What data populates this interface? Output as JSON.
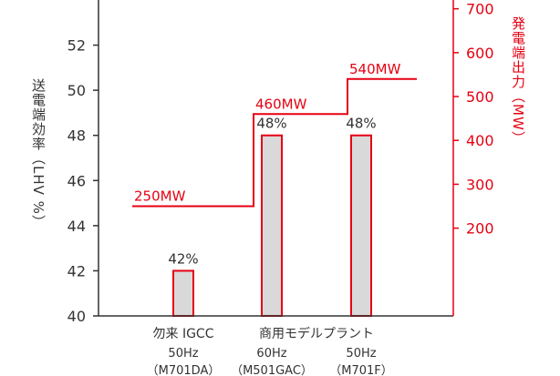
{
  "chart_data": {
    "type": "bar",
    "ylabel": "送電端効率（LHV %）",
    "y2label": "発電端出力（MW）",
    "ylim": [
      40,
      54
    ],
    "yticks": [
      40,
      42,
      44,
      46,
      48,
      50,
      52
    ],
    "y2lim": [
      0,
      720
    ],
    "y2ticks": [
      200,
      300,
      400,
      500,
      600,
      700
    ],
    "categories": [
      {
        "line1": "勿来 IGCC",
        "line2": "50Hz",
        "line3": "（M701DA）"
      },
      {
        "line1": "",
        "line2": "60Hz",
        "line3": "（M501GAC）"
      },
      {
        "line1": "",
        "line2": "50Hz",
        "line3": "（M701F）"
      }
    ],
    "group_label": "商用モデルプラント",
    "series": [
      {
        "values": [
          42,
          48,
          48
        ],
        "labels": [
          "42%",
          "48%",
          "48%"
        ],
        "axis": "left"
      },
      {
        "values": [
          250,
          460,
          540
        ],
        "labels": [
          "250MW",
          "460MW",
          "540MW"
        ],
        "axis": "right"
      }
    ],
    "colors": {
      "bar_fill": "#d9d9d9",
      "bar_stroke": "#e60012",
      "line": "#e60012",
      "axis": "#333333",
      "right_axis": "#e60012"
    },
    "grid": false,
    "legend": "none"
  }
}
